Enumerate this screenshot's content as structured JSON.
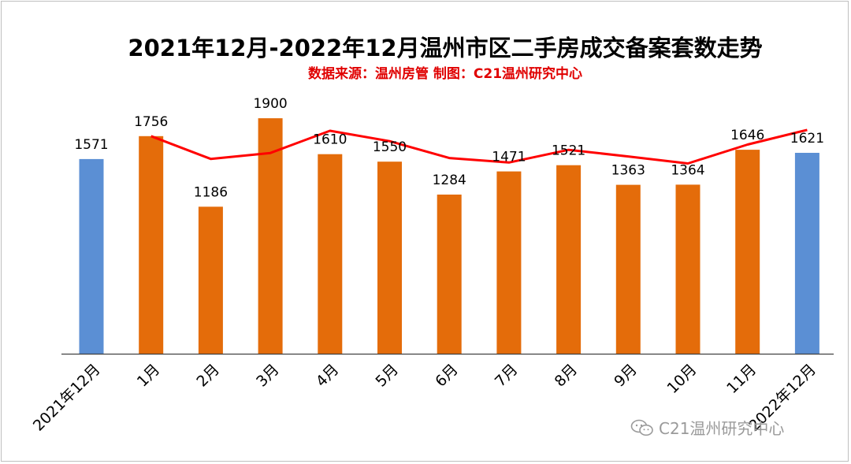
{
  "title": "2021年12月-2022年12月温州市区二手房成交备案套数走势",
  "subtitle": "数据来源：温州房管  制图：C21温州研究中心",
  "watermark": {
    "icon": "wechat-icon",
    "text": "C21温州研究中心"
  },
  "colors": {
    "subtitle": "#e00000",
    "bar_edge": "#5b8fd4",
    "bar_main": "#e46c0a",
    "line": "#ff0000",
    "axis": "#404040"
  },
  "chart_data": {
    "type": "bar",
    "categories": [
      "2021年12月",
      "1月",
      "2月",
      "3月",
      "4月",
      "5月",
      "6月",
      "7月",
      "8月",
      "9月",
      "10月",
      "11月",
      "2022年12月"
    ],
    "values": [
      1571,
      1756,
      1186,
      1900,
      1610,
      1550,
      1284,
      1471,
      1521,
      1363,
      1364,
      1646,
      1621
    ],
    "trend_line": {
      "type": "line",
      "from_index": 1,
      "values": [
        1756,
        1572,
        1620,
        1799,
        1715,
        1579,
        1543,
        1645,
        1592,
        1535,
        1688,
        1806
      ]
    },
    "bar_colors": [
      "#5b8fd4",
      "#e46c0a",
      "#e46c0a",
      "#e46c0a",
      "#e46c0a",
      "#e46c0a",
      "#e46c0a",
      "#e46c0a",
      "#e46c0a",
      "#e46c0a",
      "#e46c0a",
      "#e46c0a",
      "#5b8fd4"
    ],
    "ylim": [
      0,
      2000
    ],
    "grid": false,
    "legend": "none",
    "xlabel": "",
    "ylabel": ""
  }
}
